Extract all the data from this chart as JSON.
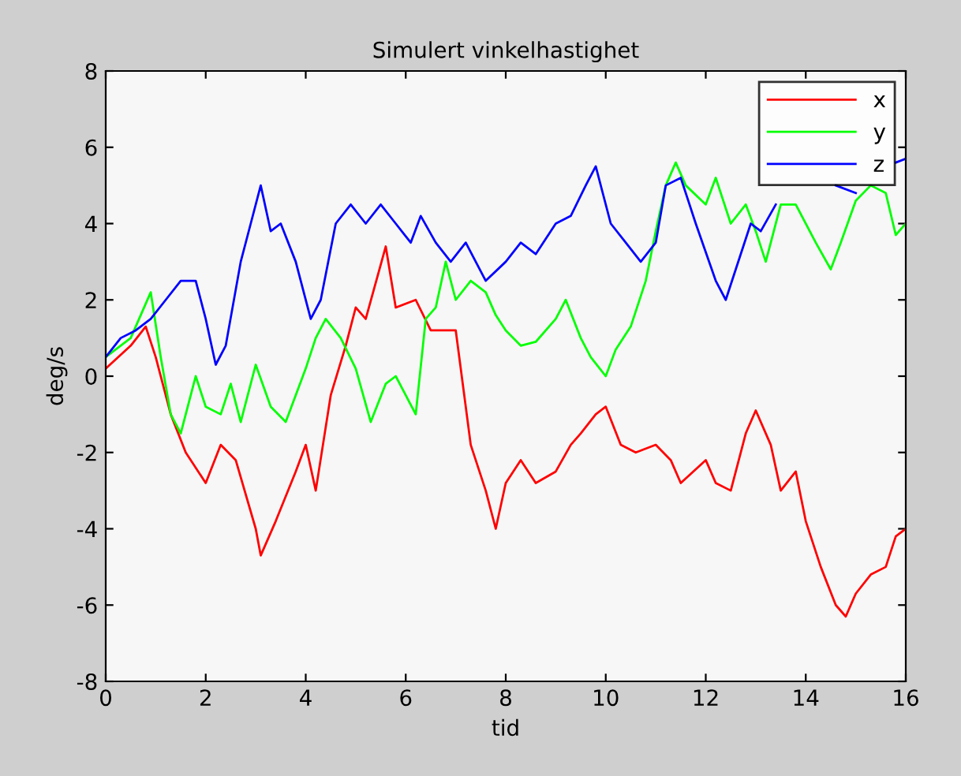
{
  "chart_data": {
    "type": "line",
    "title": "Simulert vinkelhastighet",
    "xlabel": "tid",
    "ylabel": "deg/s",
    "xlim": [
      0,
      16
    ],
    "ylim": [
      -8,
      8
    ],
    "xticks": [
      0,
      2,
      4,
      6,
      8,
      10,
      12,
      14,
      16
    ],
    "yticks": [
      -8,
      -6,
      -4,
      -2,
      0,
      2,
      4,
      6,
      8
    ],
    "grid": false,
    "legend": "top right",
    "line_style": "solid",
    "marker": "none",
    "series": [
      {
        "name": "x",
        "color": "#ff0000",
        "x": [
          0,
          0.5,
          0.8,
          1.0,
          1.3,
          1.6,
          2.0,
          2.3,
          2.6,
          3.0,
          3.1,
          3.4,
          3.8,
          4.0,
          4.2,
          4.5,
          4.8,
          5.0,
          5.2,
          5.6,
          5.8,
          6.2,
          6.5,
          7.0,
          7.3,
          7.6,
          7.8,
          8.0,
          8.3,
          8.6,
          9.0,
          9.3,
          9.5,
          9.8,
          10.0,
          10.3,
          10.6,
          11.0,
          11.3,
          11.5,
          12.0,
          12.2,
          12.5,
          12.8,
          13.0,
          13.3,
          13.5,
          13.8,
          14.0,
          14.3,
          14.6,
          14.8,
          15.0,
          15.3,
          15.6,
          15.8,
          16.0
        ],
        "values": [
          0.2,
          0.8,
          1.3,
          0.5,
          -1.0,
          -2.0,
          -2.8,
          -1.8,
          -2.2,
          -4.0,
          -4.7,
          -3.8,
          -2.5,
          -1.8,
          -3.0,
          -0.5,
          0.8,
          1.8,
          1.5,
          3.4,
          1.8,
          2.0,
          1.2,
          1.2,
          -1.8,
          -3.0,
          -4.0,
          -2.8,
          -2.2,
          -2.8,
          -2.5,
          -1.8,
          -1.5,
          -1.0,
          -0.8,
          -1.8,
          -2.0,
          -1.8,
          -2.2,
          -2.8,
          -2.2,
          -2.8,
          -3.0,
          -1.5,
          -0.9,
          -1.8,
          -3.0,
          -2.5,
          -3.8,
          -5.0,
          -6.0,
          -6.3,
          -5.7,
          -5.2,
          -5.0,
          -4.2,
          -4.0
        ]
      },
      {
        "name": "y",
        "color": "#00ff00",
        "x": [
          0,
          0.5,
          0.9,
          1.1,
          1.3,
          1.5,
          1.8,
          2.0,
          2.3,
          2.5,
          2.7,
          3.0,
          3.3,
          3.6,
          4.0,
          4.2,
          4.4,
          4.7,
          5.0,
          5.3,
          5.6,
          5.8,
          6.0,
          6.2,
          6.4,
          6.6,
          6.8,
          7.0,
          7.3,
          7.6,
          7.8,
          8.0,
          8.3,
          8.6,
          9.0,
          9.2,
          9.5,
          9.7,
          10.0,
          10.2,
          10.5,
          10.8,
          11.0,
          11.2,
          11.4,
          11.6,
          12.0,
          12.2,
          12.5,
          12.8,
          13.0,
          13.2,
          13.5,
          13.8,
          14.2,
          14.5,
          14.7,
          15.0,
          15.3,
          15.6,
          15.8,
          16.0
        ],
        "values": [
          0.5,
          1.0,
          2.2,
          0.5,
          -1.0,
          -1.5,
          0,
          -0.8,
          -1.0,
          -0.2,
          -1.2,
          0.3,
          -0.8,
          -1.2,
          0.2,
          1.0,
          1.5,
          1.0,
          0.2,
          -1.2,
          -0.2,
          0,
          -0.5,
          -1.0,
          1.5,
          1.8,
          3.0,
          2.0,
          2.5,
          2.2,
          1.6,
          1.2,
          0.8,
          0.9,
          1.5,
          2.0,
          1.0,
          0.5,
          0,
          0.7,
          1.3,
          2.5,
          3.8,
          5.0,
          5.6,
          5.0,
          4.5,
          5.2,
          4.0,
          4.5,
          3.8,
          3.0,
          4.5,
          4.5,
          3.5,
          2.8,
          3.5,
          4.6,
          5.0,
          4.8,
          3.7,
          4.0
        ]
      },
      {
        "name": "z",
        "color": "#0000ff",
        "x": [
          0,
          0.3,
          0.6,
          0.9,
          1.2,
          1.5,
          1.8,
          2.0,
          2.2,
          2.4,
          2.7,
          2.9,
          3.1,
          3.3,
          3.5,
          3.8,
          4.1,
          4.3,
          4.6,
          4.9,
          5.2,
          5.5,
          5.8,
          6.1,
          6.3,
          6.6,
          6.9,
          7.2,
          7.6,
          8.0,
          8.3,
          8.6,
          9.0,
          9.3,
          9.6,
          9.8,
          10.1,
          10.4,
          10.7,
          11.0,
          11.2,
          11.5,
          11.8,
          12.2,
          12.4,
          12.6,
          12.9,
          13.1,
          13.4,
          13.6,
          13.9,
          14.3,
          14.6,
          15.0,
          15.5,
          15.8,
          16.0
        ],
        "values": [
          0.5,
          1.0,
          1.2,
          1.5,
          2.0,
          2.5,
          2.5,
          1.5,
          0.3,
          0.8,
          3.0,
          4.0,
          5.0,
          3.8,
          4.0,
          3.0,
          1.5,
          2.0,
          4.0,
          4.5,
          4.0,
          4.5,
          4.0,
          3.5,
          4.2,
          3.5,
          3.0,
          3.5,
          2.5,
          3.0,
          3.5,
          3.2,
          4.0,
          4.2,
          5.0,
          5.5,
          4.0,
          3.5,
          3.0,
          3.5,
          5.0,
          5.2,
          4.0,
          2.5,
          2.0,
          2.8,
          4.0,
          3.8,
          4.5,
          null,
          null,
          null,
          5.0,
          4.8,
          null,
          5.6,
          5.7
        ]
      }
    ]
  }
}
